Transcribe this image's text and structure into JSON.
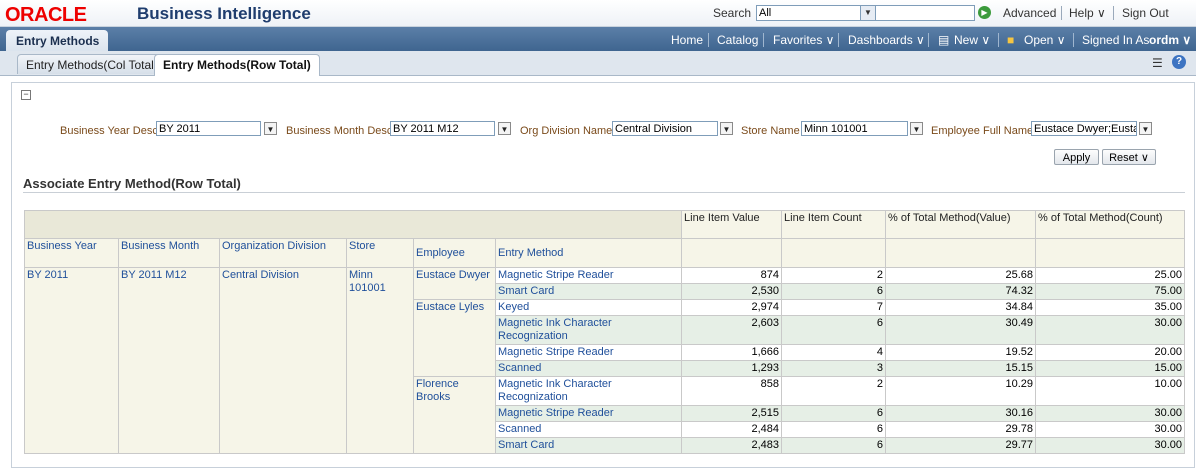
{
  "header": {
    "logo": "ORACLE",
    "app_title": "Business Intelligence",
    "search_label": "Search",
    "search_scope": "All",
    "search_value": "",
    "advanced": "Advanced",
    "help": "Help ∨",
    "sign_out": "Sign Out"
  },
  "nav": {
    "page_tab": "Entry Methods",
    "home": "Home",
    "catalog": "Catalog",
    "favorites": "Favorites ∨",
    "dashboards": "Dashboards ∨",
    "new": "New ∨",
    "open": "Open ∨",
    "signed_in_as": "Signed In As",
    "user": "ordm ∨"
  },
  "subtabs": [
    {
      "label": "Entry Methods(Col Total)"
    },
    {
      "label": "Entry Methods(Row Total)"
    }
  ],
  "prompts": {
    "business_year": {
      "label": "Business Year Desc",
      "value": "BY 2011"
    },
    "business_month": {
      "label": "Business Month Desc",
      "value": "BY 2011 M12"
    },
    "org_division": {
      "label": "Org Division Name",
      "value": "Central Division"
    },
    "store": {
      "label": "Store Name",
      "value": "Minn 101001"
    },
    "employee": {
      "label": "Employee Full Name",
      "value": "Eustace Dwyer;Eustace"
    },
    "apply": "Apply",
    "reset": "Reset ∨"
  },
  "report": {
    "title": "Associate Entry Method(Row Total)",
    "measure_headers": [
      "Line Item Value",
      "Line Item Count",
      "% of Total Method(Value)",
      "% of Total Method(Count)"
    ],
    "dim_headers": [
      "Business Year",
      "Business Month",
      "Organization Division",
      "Store",
      "Employee",
      "Entry Method"
    ],
    "business_year": "BY 2011",
    "business_month": "BY 2011 M12",
    "org_division": "Central Division",
    "store": "Minn 101001",
    "employees": [
      "Eustace Dwyer",
      "Eustace Lyles",
      "Florence Brooks"
    ],
    "rows": [
      {
        "method": "Magnetic Stripe Reader",
        "value": "874",
        "count": "2",
        "pct_value": "25.68",
        "pct_count": "25.00"
      },
      {
        "method": "Smart Card",
        "value": "2,530",
        "count": "6",
        "pct_value": "74.32",
        "pct_count": "75.00"
      },
      {
        "method": "Keyed",
        "value": "2,974",
        "count": "7",
        "pct_value": "34.84",
        "pct_count": "35.00"
      },
      {
        "method": "Magnetic Ink Character Recognization",
        "value": "2,603",
        "count": "6",
        "pct_value": "30.49",
        "pct_count": "30.00"
      },
      {
        "method": "Magnetic Stripe Reader",
        "value": "1,666",
        "count": "4",
        "pct_value": "19.52",
        "pct_count": "20.00"
      },
      {
        "method": "Scanned",
        "value": "1,293",
        "count": "3",
        "pct_value": "15.15",
        "pct_count": "15.00"
      },
      {
        "method": "Magnetic Ink Character Recognization",
        "value": "858",
        "count": "2",
        "pct_value": "10.29",
        "pct_count": "10.00"
      },
      {
        "method": "Magnetic Stripe Reader",
        "value": "2,515",
        "count": "6",
        "pct_value": "30.16",
        "pct_count": "30.00"
      },
      {
        "method": "Scanned",
        "value": "2,484",
        "count": "6",
        "pct_value": "29.78",
        "pct_count": "30.00"
      },
      {
        "method": "Smart Card",
        "value": "2,483",
        "count": "6",
        "pct_value": "29.77",
        "pct_count": "30.00"
      }
    ]
  },
  "colors": {
    "link": "#1f4f9a",
    "prompt_label": "#7a4a1a",
    "navbar": "#3f6590",
    "alt_row": "#e6efe6"
  }
}
